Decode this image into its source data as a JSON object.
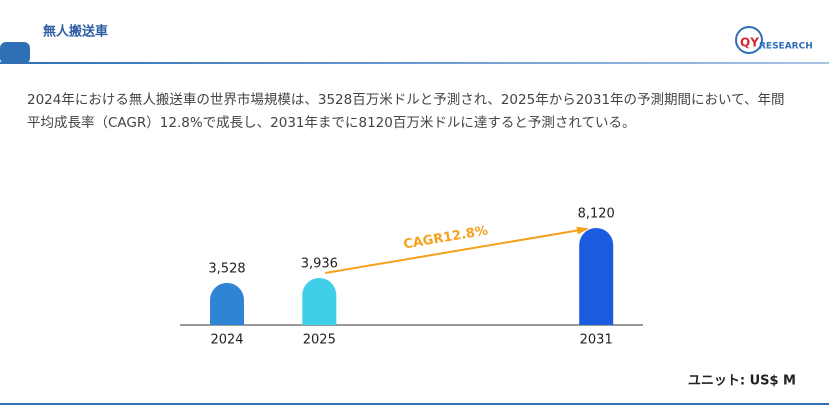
{
  "header": {
    "title": "無人搬送車"
  },
  "logo": {
    "mark": "QY",
    "text": "RESEARCH"
  },
  "description": [
    "2024年における無人搬送車の世界市場規模は、3528百万米ドルと予測され、2025年から2031年の予測期間において、年間",
    "平均成長率（CAGR）12.8%で成長し、2031年までに8120百万米ドルに達すると予測されている。"
  ],
  "chart_data": {
    "type": "bar",
    "categories": [
      "2024",
      "2025",
      null,
      null,
      "2031"
    ],
    "values": [
      3528,
      3936,
      null,
      null,
      8120
    ],
    "value_labels": [
      "3,528",
      "3,936",
      null,
      null,
      "8,120"
    ],
    "colors": [
      "#2f84d6",
      "#3fcfe9",
      null,
      null,
      "#1b5be0"
    ],
    "annotation": "CAGR12.8%",
    "annotation_color": "#f5a11c"
  },
  "unit": "ユニット: US$ M"
}
